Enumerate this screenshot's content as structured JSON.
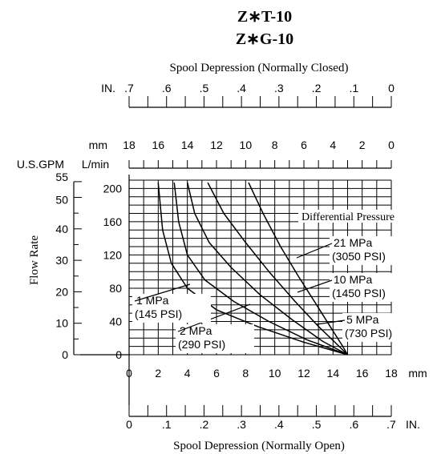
{
  "title_lines": [
    "Z∗T-10",
    "Z∗G-10"
  ],
  "chart_data": {
    "type": "line",
    "top_axis": {
      "title": "Spool Depression (Normally Closed)",
      "unit": "IN.",
      "ticks": [
        ".7",
        ".6",
        ".5",
        ".4",
        ".3",
        ".2",
        ".1",
        "0"
      ]
    },
    "mm_top_axis": {
      "unit": "mm",
      "ticks": [
        "18",
        "16",
        "14",
        "12",
        "10",
        "8",
        "6",
        "4",
        "2",
        "0"
      ]
    },
    "bottom_mm_axis": {
      "unit": "mm",
      "ticks": [
        "0",
        "2",
        "4",
        "6",
        "8",
        "10",
        "12",
        "14",
        "16",
        "18"
      ]
    },
    "bottom_axis": {
      "title": "Spool Depression (Normally Open)",
      "unit": "IN.",
      "ticks": [
        "0",
        ".1",
        ".2",
        ".3",
        ".4",
        ".5",
        ".6",
        ".7"
      ]
    },
    "ylabel": "Flow Rate",
    "gpm_axis": {
      "unit": "U.S.GPM",
      "ticks": [
        "0",
        "10",
        "20",
        "30",
        "40",
        "50",
        "55"
      ]
    },
    "lmin_axis": {
      "unit": "L/min",
      "ticks": [
        "0",
        "40",
        "80",
        "120",
        "160",
        "200"
      ]
    },
    "x_unit": "mm (normally open)",
    "y_unit": "L/min",
    "xlim": [
      0,
      18
    ],
    "ylim": [
      0,
      210
    ],
    "legend_title": "Differential Pressure",
    "series": [
      {
        "name": "21 MPa (3050 PSI)",
        "label_lines": [
          "21 MPa",
          "(3050 PSI)"
        ],
        "x": [
          8.2,
          9.2,
          10.4,
          11.6,
          12.8,
          13.8,
          14.6,
          15.0
        ],
        "y": [
          207,
          170,
          130,
          95,
          62,
          34,
          12,
          0
        ]
      },
      {
        "name": "10 MPa (1450 PSI)",
        "label_lines": [
          "10 MPa",
          "(1450 PSI)"
        ],
        "x": [
          5.4,
          6.5,
          8.0,
          9.6,
          11.4,
          13.0,
          14.3,
          15.0
        ],
        "y": [
          207,
          170,
          135,
          100,
          64,
          34,
          12,
          0
        ]
      },
      {
        "name": "5 MPa (730 PSI)",
        "label_lines": [
          "5 MPa",
          "(730 PSI)"
        ],
        "x": [
          4.0,
          4.5,
          5.5,
          7.0,
          9.0,
          11.2,
          13.3,
          15.0
        ],
        "y": [
          207,
          170,
          135,
          105,
          72,
          42,
          16,
          0
        ]
      },
      {
        "name": "2 MPa (290 PSI)",
        "label_lines": [
          "2 MPa",
          "(290 PSI)"
        ],
        "x": [
          3.1,
          3.4,
          4.0,
          5.2,
          7.2,
          9.6,
          12.2,
          15.0
        ],
        "y": [
          207,
          160,
          120,
          90,
          64,
          40,
          18,
          0
        ]
      },
      {
        "name": "1 MPa (145 PSI)",
        "label_lines": [
          "1 MPa",
          "(145 PSI)"
        ],
        "x": [
          2.0,
          2.3,
          2.9,
          4.0,
          6.0,
          8.8,
          12.0,
          15.0
        ],
        "y": [
          207,
          150,
          110,
          80,
          54,
          34,
          15,
          0
        ]
      }
    ]
  }
}
